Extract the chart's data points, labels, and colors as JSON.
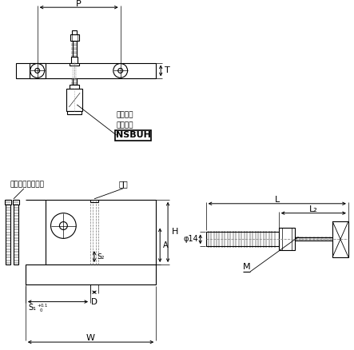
{
  "bg_color": "#ffffff",
  "line_color": "#000000",
  "figsize": [
    4.43,
    4.38
  ],
  "dpi": 100,
  "texts": {
    "label1": "带聚氨酯",
    "label2": "止动螺栓",
    "label3": "NSBUH",
    "label4": "内六角圆柱头螺栓",
    "label5": "主体",
    "P": "P",
    "T": "T",
    "L": "L",
    "L2": "L₂",
    "phi14": "φ14",
    "M": "M",
    "H": "H",
    "A": "A",
    "S2": "S₂",
    "D": "D",
    "S1": "S₁",
    "W": "W"
  }
}
